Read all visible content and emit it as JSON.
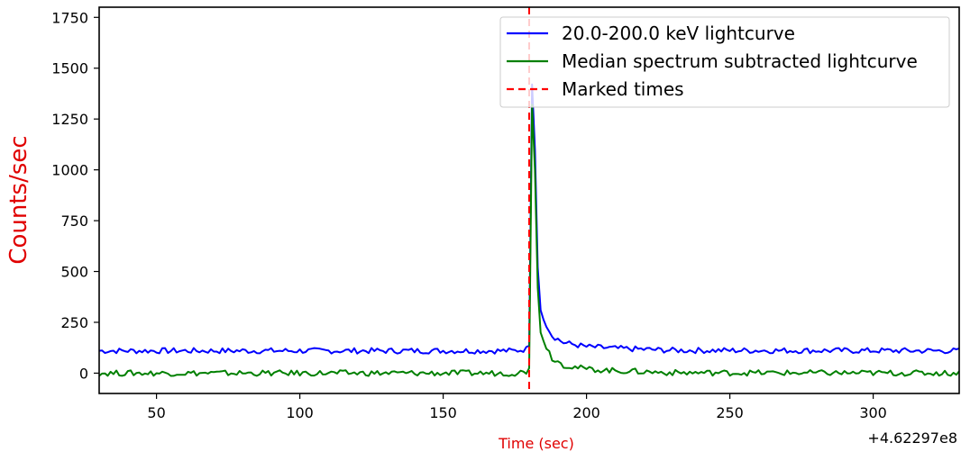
{
  "chart_data": {
    "type": "line",
    "title": "",
    "xlabel": "Time (sec)",
    "ylabel": "Counts/sec",
    "x_offset_label": "+4.62297e8",
    "xlim": [
      30,
      330
    ],
    "ylim": [
      -100,
      1800
    ],
    "x_ticks": [
      50,
      100,
      150,
      200,
      250,
      300
    ],
    "y_ticks": [
      0,
      250,
      500,
      750,
      1000,
      1250,
      1500,
      1750
    ],
    "grid": false,
    "legend_position": "top-right",
    "series": [
      {
        "name": "20.0-200.0 keV lightcurve",
        "color": "#0000ff",
        "baseline": 110,
        "noise": 14,
        "x": [
          30,
          175,
          179,
          180,
          181,
          182,
          183,
          184,
          186,
          188,
          192,
          200,
          210,
          230,
          330
        ],
        "y": [
          110,
          110,
          118,
          135,
          1420,
          1100,
          520,
          310,
          240,
          185,
          150,
          130,
          122,
          112,
          110
        ]
      },
      {
        "name": "Median spectrum subtracted lightcurve",
        "color": "#008000",
        "baseline": 0,
        "noise": 14,
        "x": [
          30,
          175,
          179,
          180,
          181,
          182,
          183,
          184,
          186,
          188,
          192,
          200,
          210,
          230,
          330
        ],
        "y": [
          0,
          0,
          8,
          25,
          1320,
          1000,
          420,
          200,
          130,
          75,
          40,
          20,
          12,
          2,
          0
        ]
      }
    ],
    "marked_times": {
      "name": "Marked times",
      "color": "#ff0000",
      "x": [
        180
      ]
    }
  }
}
